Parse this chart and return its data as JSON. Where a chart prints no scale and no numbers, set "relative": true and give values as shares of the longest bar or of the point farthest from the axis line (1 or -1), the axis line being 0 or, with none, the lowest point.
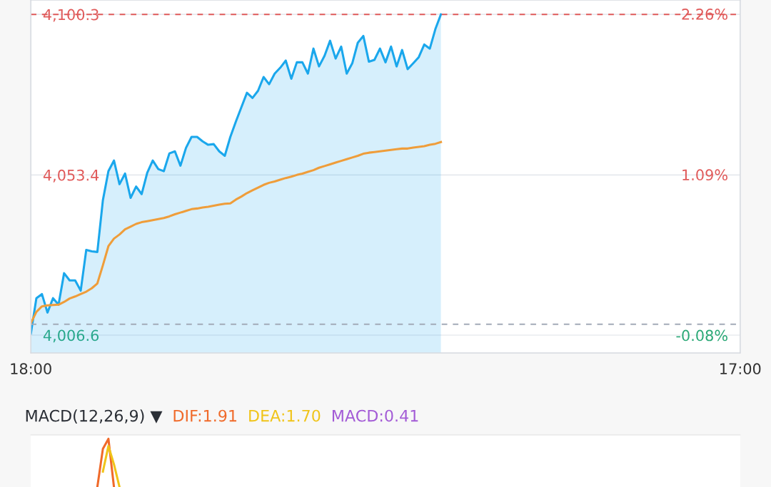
{
  "chart_data": [
    {
      "type": "area",
      "categories": [
        "18:00",
        null,
        null,
        null,
        null,
        null,
        null,
        null,
        null,
        null,
        null,
        null,
        null,
        null,
        null,
        null,
        null,
        null,
        null,
        null,
        null,
        null,
        null,
        null,
        null,
        null,
        null,
        null,
        null,
        null,
        null,
        null,
        null,
        null,
        null,
        null,
        null,
        null,
        null,
        null,
        null,
        null,
        null,
        null,
        null,
        null,
        null,
        null,
        null,
        null,
        null,
        null,
        null,
        null,
        null,
        null,
        null,
        null,
        null,
        null,
        null,
        null,
        null,
        null,
        null,
        null,
        null,
        null,
        null,
        null,
        null,
        null,
        null,
        null,
        null,
        null,
        null,
        null,
        null,
        null,
        null,
        null,
        null,
        null,
        null,
        null,
        null,
        null,
        null,
        null,
        null,
        null,
        null,
        null,
        null,
        null,
        null,
        null,
        null,
        null,
        null,
        null,
        null,
        null,
        null,
        null,
        null,
        null,
        null,
        null,
        null,
        null,
        null,
        null,
        null,
        null,
        null,
        null,
        null,
        null,
        null,
        null,
        null,
        null,
        null,
        null,
        null,
        null,
        "17:00"
      ],
      "ylim": [
        4001.4,
        4104.5
      ],
      "yticks": [
        {
          "value": 4100.3,
          "label": "4,100.3"
        },
        {
          "value": 4053.4,
          "label": "4,053.4"
        },
        {
          "value": 4006.6,
          "label": "4,006.6"
        }
      ],
      "y2lim": [
        -0.209,
        2.362
      ],
      "y2ticks": [
        {
          "value": 2.26,
          "label": "2.26%"
        },
        {
          "value": 1.09,
          "label": "1.09%"
        },
        {
          "value": -0.08,
          "label": "-0.08%"
        }
      ],
      "grid": "y",
      "ref_lines": [
        {
          "axis": "y",
          "value": 4100.3,
          "color": "#e05a5a",
          "line_style": "dashed"
        },
        {
          "axis": "y",
          "value": 4009.8,
          "color": "#a3abb8",
          "line_style": "dashed"
        }
      ],
      "series": [
        {
          "color": "#1aa7ec",
          "values": [
            4007.1,
            4017.4,
            4018.6,
            4013.2,
            4017.4,
            4015.5,
            4024.7,
            4022.6,
            4022.6,
            4019.6,
            4031.5,
            4031.1,
            4030.9,
            4046.0,
            4054.5,
            4057.6,
            4050.7,
            4053.8,
            4046.7,
            4050.0,
            4047.8,
            4054.0,
            4057.6,
            4055.1,
            4054.5,
            4059.7,
            4060.3,
            4056.1,
            4061.3,
            4064.5,
            4064.5,
            4063.2,
            4062.2,
            4062.4,
            4060.3,
            4059.0,
            4064.5,
            4069.0,
            4073.2,
            4077.4,
            4075.9,
            4078.0,
            4082.0,
            4079.9,
            4083.0,
            4084.7,
            4086.8,
            4081.5,
            4086.3,
            4086.3,
            4083.0,
            4090.3,
            4085.1,
            4088.2,
            4092.6,
            4087.4,
            4090.9,
            4083.0,
            4086.0,
            4092.0,
            4094.0,
            4086.5,
            4087.0,
            4090.3,
            4086.3,
            4090.9,
            4085.1,
            4089.9,
            4084.3,
            4086.0,
            4087.8,
            4091.5,
            4090.3,
            4096.0,
            4100.3,
            null,
            null,
            null,
            null,
            null,
            null,
            null,
            null,
            null,
            null,
            null,
            null,
            null,
            null,
            null,
            null,
            null,
            null,
            null,
            null,
            null,
            null,
            null,
            null,
            null,
            null,
            null,
            null,
            null,
            null,
            null,
            null,
            null,
            null,
            null,
            null,
            null,
            null,
            null,
            null,
            null,
            null,
            null,
            null,
            null,
            null,
            null,
            null,
            null,
            null,
            null,
            null,
            null,
            null
          ]
        },
        {
          "type": "line",
          "color": "#ef9d3a",
          "values": [
            4010.1,
            4013.4,
            4015.0,
            4015.3,
            4015.4,
            4015.5,
            4016.3,
            4017.3,
            4017.9,
            4018.6,
            4019.3,
            4020.3,
            4021.7,
            4027.0,
            4032.6,
            4034.8,
            4036.0,
            4037.5,
            4038.3,
            4039.1,
            4039.6,
            4039.9,
            4040.2,
            4040.5,
            4040.8,
            4041.3,
            4041.9,
            4042.4,
            4042.9,
            4043.4,
            4043.6,
            4043.9,
            4044.1,
            4044.4,
            4044.7,
            4045.0,
            4045.1,
            4046.2,
            4047.1,
            4048.1,
            4048.9,
            4049.7,
            4050.5,
            4051.1,
            4051.5,
            4052.0,
            4052.5,
            4052.9,
            4053.4,
            4053.8,
            4054.3,
            4054.8,
            4055.5,
            4056.0,
            4056.5,
            4057.0,
            4057.5,
            4058.0,
            4058.5,
            4059.0,
            4059.6,
            4059.9,
            4060.1,
            4060.3,
            4060.5,
            4060.7,
            4060.9,
            4061.1,
            4061.1,
            4061.4,
            4061.6,
            4061.8,
            4062.2,
            4062.5,
            4063.0,
            null,
            null,
            null,
            null,
            null,
            null,
            null,
            null,
            null,
            null,
            null,
            null,
            null,
            null,
            null,
            null,
            null,
            null,
            null,
            null,
            null,
            null,
            null,
            null,
            null,
            null,
            null,
            null,
            null,
            null,
            null,
            null,
            null,
            null,
            null,
            null,
            null,
            null,
            null,
            null,
            null,
            null,
            null,
            null,
            null,
            null,
            null,
            null,
            null,
            null,
            null,
            null,
            null,
            null
          ]
        }
      ]
    },
    {
      "type": "line",
      "title": "MACD(12,26,9) ▼",
      "relative": true,
      "categories": [
        null,
        null,
        null,
        null,
        null,
        null,
        null,
        null,
        null,
        null,
        null,
        null,
        null,
        null,
        null,
        null,
        null,
        null,
        null,
        null,
        null,
        null,
        null,
        null,
        null,
        null,
        null,
        null,
        null,
        null,
        null,
        null,
        null,
        null,
        null,
        null,
        null,
        null,
        null,
        null,
        null,
        null,
        null,
        null,
        null,
        null,
        null,
        null,
        null,
        null,
        null,
        null,
        null,
        null,
        null,
        null,
        null,
        null,
        null,
        null,
        null,
        null,
        null,
        null,
        null,
        null,
        null,
        null,
        null,
        null,
        null,
        null,
        null,
        null,
        null,
        null,
        null,
        null,
        null,
        null,
        null,
        null,
        null,
        null,
        null,
        null,
        null,
        null,
        null,
        null,
        null,
        null,
        null,
        null,
        null,
        null,
        null,
        null,
        null,
        null,
        null,
        null,
        null,
        null,
        null,
        null,
        null,
        null,
        null,
        null,
        null,
        null,
        null,
        null,
        null,
        null,
        null,
        null,
        null,
        null,
        null,
        null,
        null,
        null,
        null,
        null,
        null,
        null,
        null
      ],
      "series": [
        {
          "name": "DIF:1.91",
          "color": "#f06a2a",
          "values": [
            null,
            null,
            null,
            null,
            null,
            null,
            null,
            null,
            null,
            null,
            null,
            null,
            0,
            0.79,
            1,
            0,
            null,
            null,
            null,
            null,
            null,
            null,
            null,
            null,
            null,
            null,
            null,
            null,
            null,
            null,
            null,
            null,
            null,
            null,
            null,
            null,
            null,
            null,
            null,
            null,
            null,
            null,
            null,
            null,
            null,
            null,
            null,
            null,
            null,
            null,
            null,
            null,
            null,
            null,
            null,
            null,
            null,
            null,
            null,
            null,
            null,
            null,
            null,
            null,
            null,
            null,
            null,
            null,
            null,
            null,
            null,
            null,
            null,
            null,
            null,
            null,
            null,
            null,
            null,
            null,
            null,
            null,
            null,
            null,
            null,
            null,
            null,
            null,
            null,
            null,
            null,
            null,
            null,
            null,
            null,
            null,
            null,
            null,
            null,
            null,
            null,
            null,
            null,
            null,
            null,
            null,
            null,
            null,
            null,
            null,
            null,
            null,
            null,
            null,
            null,
            null,
            null,
            null,
            null,
            null,
            null,
            null,
            null,
            null,
            null,
            null,
            null,
            null,
            null
          ]
        },
        {
          "name": "DEA:1.70",
          "color": "#f0c419",
          "values": [
            null,
            null,
            null,
            null,
            null,
            null,
            null,
            null,
            null,
            null,
            null,
            null,
            null,
            0.32,
            0.85,
            0.47,
            0,
            null,
            null,
            null,
            null,
            null,
            null,
            null,
            null,
            null,
            null,
            null,
            null,
            null,
            null,
            null,
            null,
            null,
            null,
            null,
            null,
            null,
            null,
            null,
            null,
            null,
            null,
            null,
            null,
            null,
            null,
            null,
            null,
            null,
            null,
            null,
            null,
            null,
            null,
            null,
            null,
            null,
            null,
            null,
            null,
            null,
            null,
            null,
            null,
            null,
            null,
            null,
            null,
            null,
            null,
            null,
            null,
            null,
            null,
            null,
            null,
            null,
            null,
            null,
            null,
            null,
            null,
            null,
            null,
            null,
            null,
            null,
            null,
            null,
            null,
            null,
            null,
            null,
            null,
            null,
            null,
            null,
            null,
            null,
            null,
            null,
            null,
            null,
            null,
            null,
            null,
            null,
            null,
            null,
            null,
            null,
            null,
            null,
            null,
            null,
            null,
            null,
            null,
            null,
            null,
            null,
            null,
            null,
            null,
            null,
            null,
            null,
            null
          ]
        },
        {
          "name": "MACD:0.41",
          "type": "bar",
          "color": "#a35bd6",
          "values": [
            null,
            null,
            null,
            null,
            null,
            null,
            null,
            null,
            null,
            null,
            null,
            null,
            null,
            null,
            null,
            null,
            null,
            null,
            null,
            null,
            null,
            null,
            null,
            null,
            null,
            null,
            null,
            null,
            null,
            null,
            null,
            null,
            null,
            null,
            null,
            null,
            null,
            null,
            null,
            null,
            null,
            null,
            null,
            null,
            null,
            null,
            null,
            null,
            null,
            null,
            null,
            null,
            null,
            null,
            null,
            null,
            null,
            null,
            null,
            null,
            null,
            null,
            null,
            null,
            null,
            null,
            null,
            null,
            null,
            null,
            null,
            null,
            null,
            null,
            null,
            null,
            null,
            null,
            null,
            null,
            null,
            null,
            null,
            null,
            null,
            null,
            null,
            null,
            null,
            null,
            null,
            null,
            null,
            null,
            null,
            null,
            null,
            null,
            null,
            null,
            null,
            null,
            null,
            null,
            null,
            null,
            null,
            null,
            null,
            null,
            null,
            null,
            null,
            null,
            null,
            null,
            null,
            null,
            null,
            null,
            null,
            null,
            null,
            null,
            null,
            null,
            null,
            null,
            null
          ]
        }
      ]
    }
  ]
}
